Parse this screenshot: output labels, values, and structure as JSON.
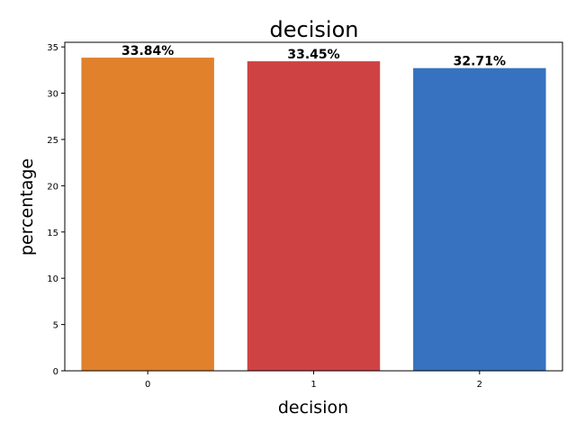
{
  "chart_data": {
    "type": "bar",
    "title": "decision",
    "xlabel": "decision",
    "ylabel": "percentage",
    "categories": [
      "0",
      "1",
      "2"
    ],
    "values": [
      33.84,
      33.45,
      32.71
    ],
    "data_labels": [
      "33.84%",
      "33.45%",
      "32.71%"
    ],
    "colors": [
      "#e1812c",
      "#cf4244",
      "#3672bf"
    ],
    "ylim": [
      0,
      35.5
    ],
    "yticks": [
      0,
      5,
      10,
      15,
      20,
      25,
      30,
      35
    ],
    "grid": false,
    "legend": "none"
  }
}
